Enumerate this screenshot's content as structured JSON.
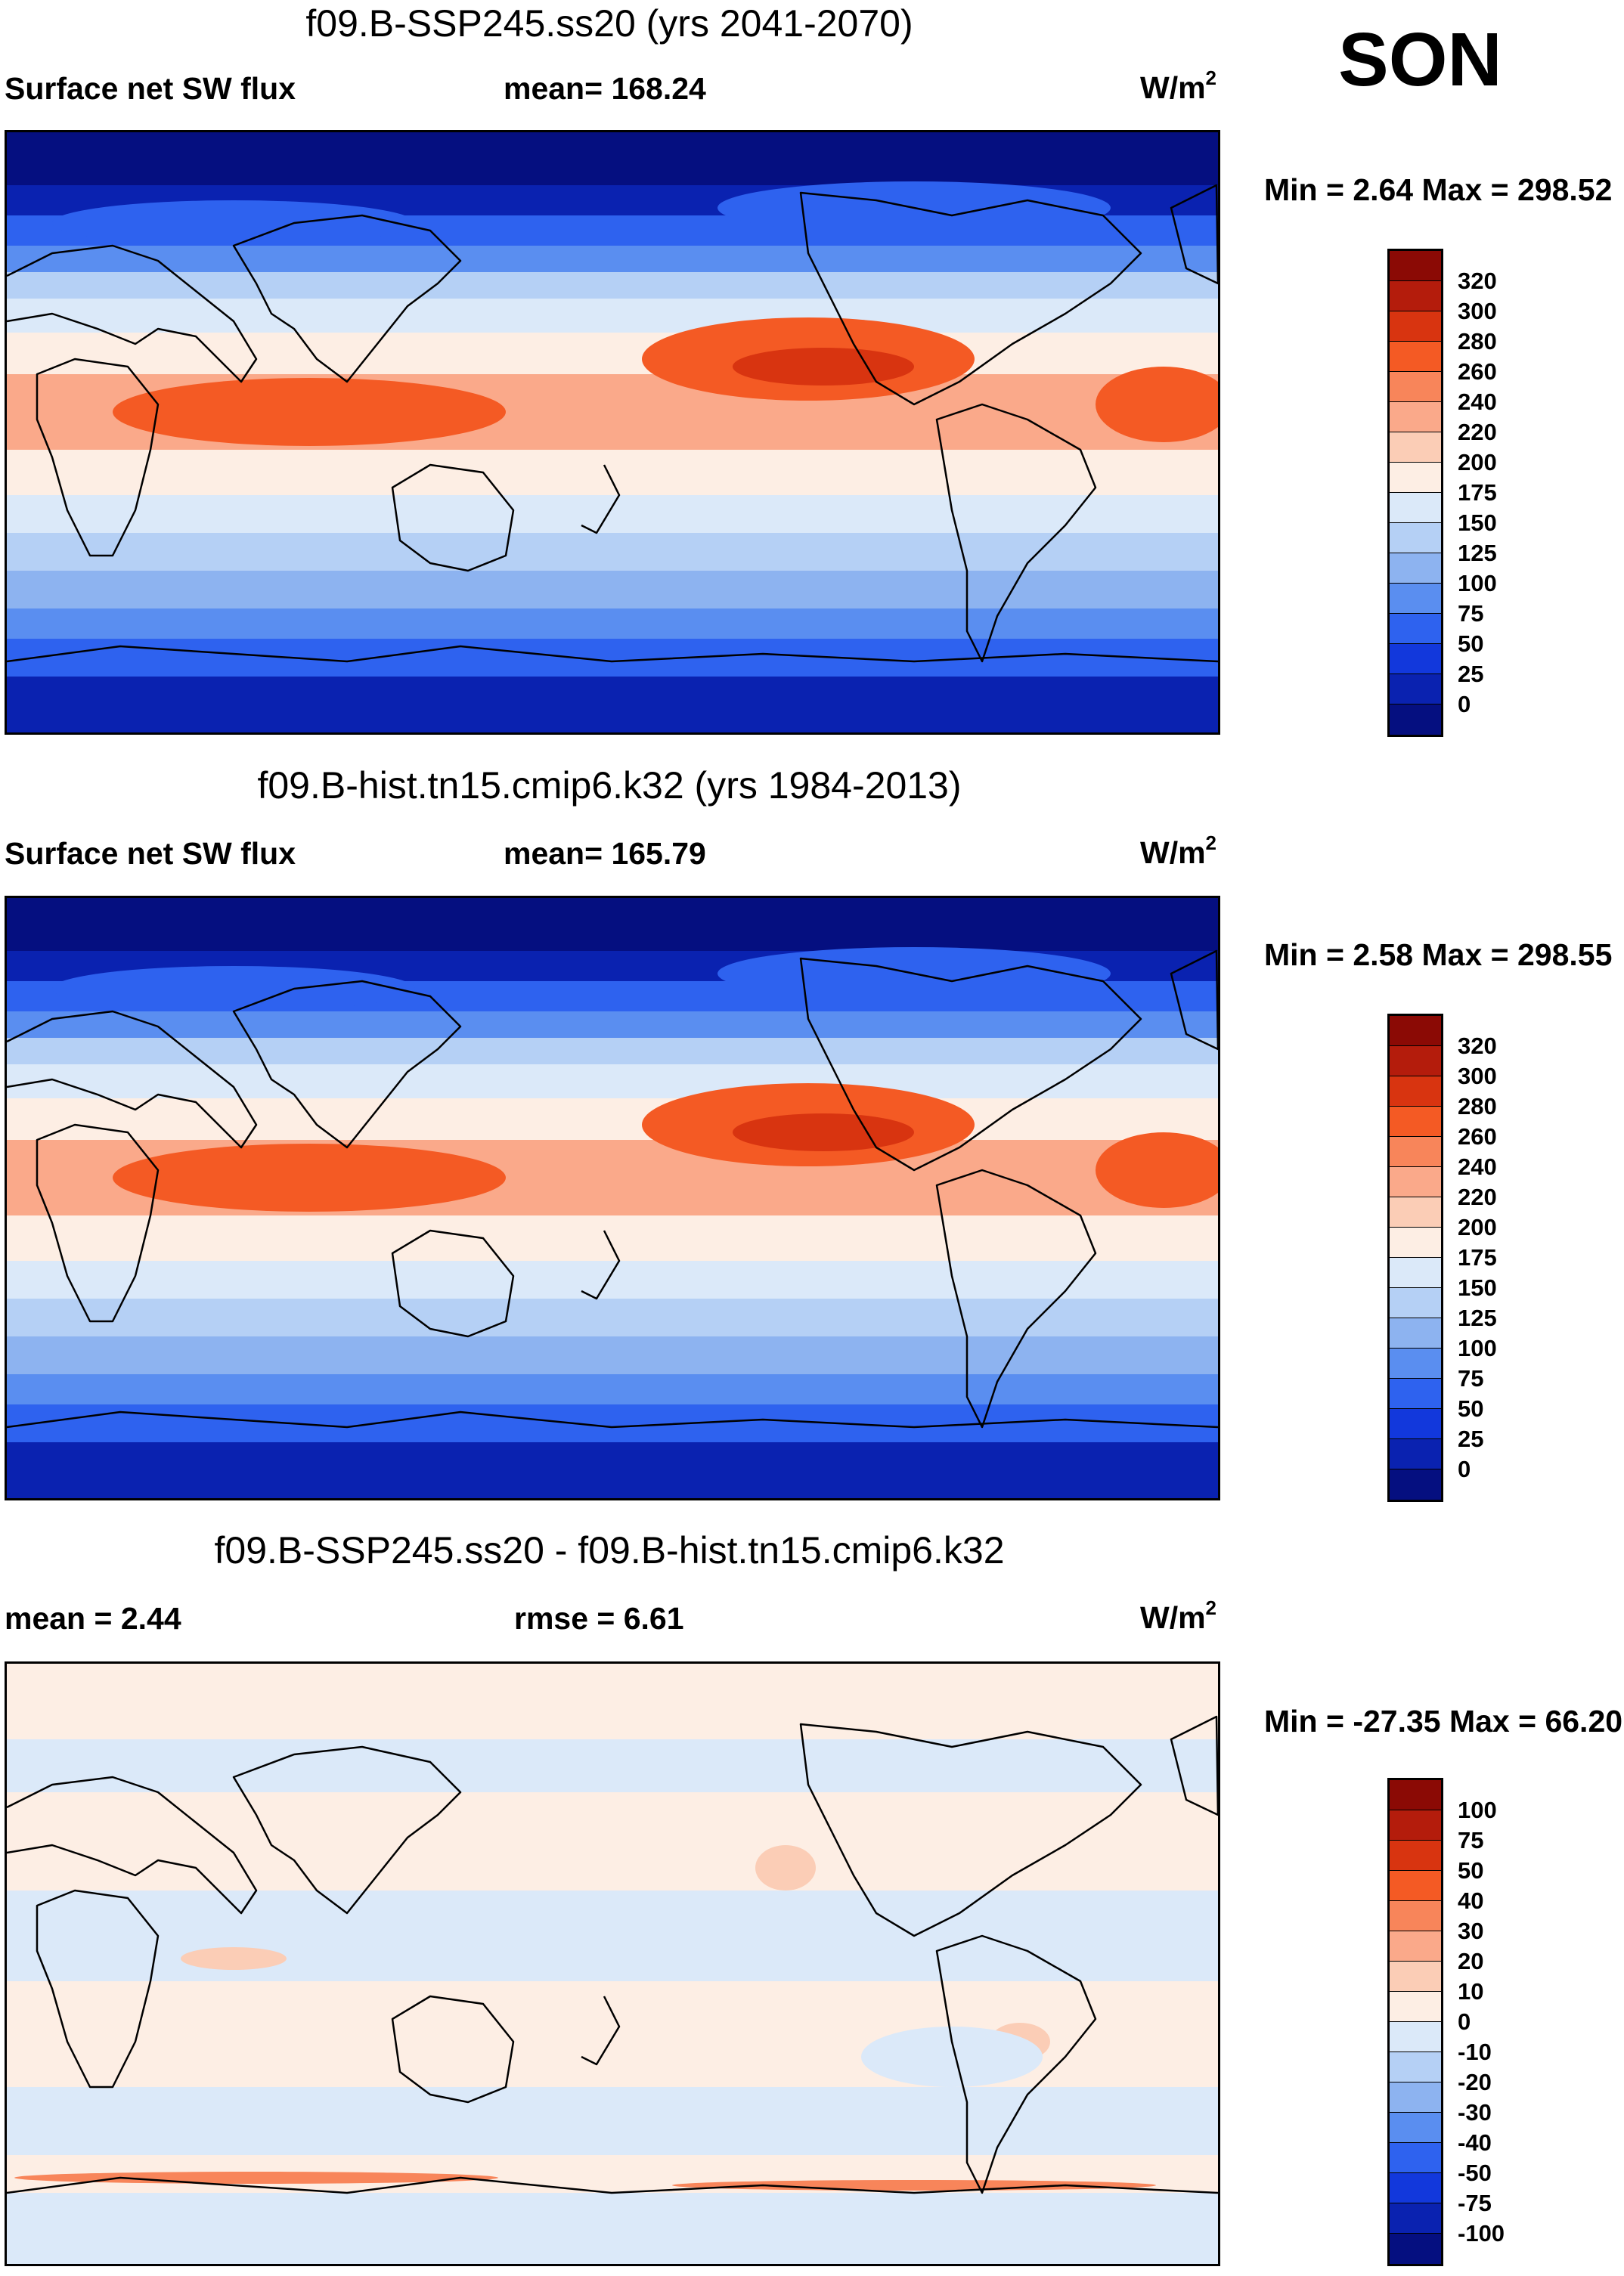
{
  "season": "SON",
  "panels": [
    {
      "title": "f09.B-SSP245.ss20 (yrs 2041-2070)",
      "left_label": "Surface net SW flux",
      "center_label": "mean= 168.24",
      "units": "W/m",
      "units_sup": "2",
      "minmax": "Min =   2.64 Max = 298.52",
      "colorbar": {
        "colors": [
          "#8b0a05",
          "#b41c0c",
          "#d83410",
          "#f45a24",
          "#f8855a",
          "#faa98a",
          "#fbcdb6",
          "#fdeee4",
          "#dbe9f9",
          "#b5d0f5",
          "#8db3f0",
          "#5a8ef0",
          "#2e62ef",
          "#1238dc",
          "#0a22b0",
          "#050f80"
        ],
        "labels": [
          "320",
          "300",
          "280",
          "260",
          "240",
          "220",
          "200",
          "175",
          "150",
          "125",
          "100",
          "75",
          "50",
          "25",
          "0"
        ]
      }
    },
    {
      "title": "f09.B-hist.tn15.cmip6.k32 (yrs 1984-2013)",
      "left_label": "Surface net SW flux",
      "center_label": "mean= 165.79",
      "units": "W/m",
      "units_sup": "2",
      "minmax": "Min =   2.58 Max = 298.55",
      "colorbar": {
        "colors": [
          "#8b0a05",
          "#b41c0c",
          "#d83410",
          "#f45a24",
          "#f8855a",
          "#faa98a",
          "#fbcdb6",
          "#fdeee4",
          "#dbe9f9",
          "#b5d0f5",
          "#8db3f0",
          "#5a8ef0",
          "#2e62ef",
          "#1238dc",
          "#0a22b0",
          "#050f80"
        ],
        "labels": [
          "320",
          "300",
          "280",
          "260",
          "240",
          "220",
          "200",
          "175",
          "150",
          "125",
          "100",
          "75",
          "50",
          "25",
          "0"
        ]
      }
    },
    {
      "title": "f09.B-SSP245.ss20 - f09.B-hist.tn15.cmip6.k32",
      "left_label": "mean =   2.44",
      "center_label": "rmse =   6.61",
      "units": "W/m",
      "units_sup": "2",
      "minmax": "Min = -27.35 Max =  66.20",
      "colorbar": {
        "colors": [
          "#8b0a05",
          "#b41c0c",
          "#d83410",
          "#f45a24",
          "#f8855a",
          "#faa98a",
          "#fbcdb6",
          "#fdeee4",
          "#dbe9f9",
          "#b5d0f5",
          "#8db3f0",
          "#5a8ef0",
          "#2e62ef",
          "#1238dc",
          "#0a22b0",
          "#050f80"
        ],
        "labels": [
          "100",
          "75",
          "50",
          "40",
          "30",
          "20",
          "10",
          "0",
          "-10",
          "-20",
          "-30",
          "-40",
          "-50",
          "-75",
          "-100"
        ]
      }
    }
  ]
}
